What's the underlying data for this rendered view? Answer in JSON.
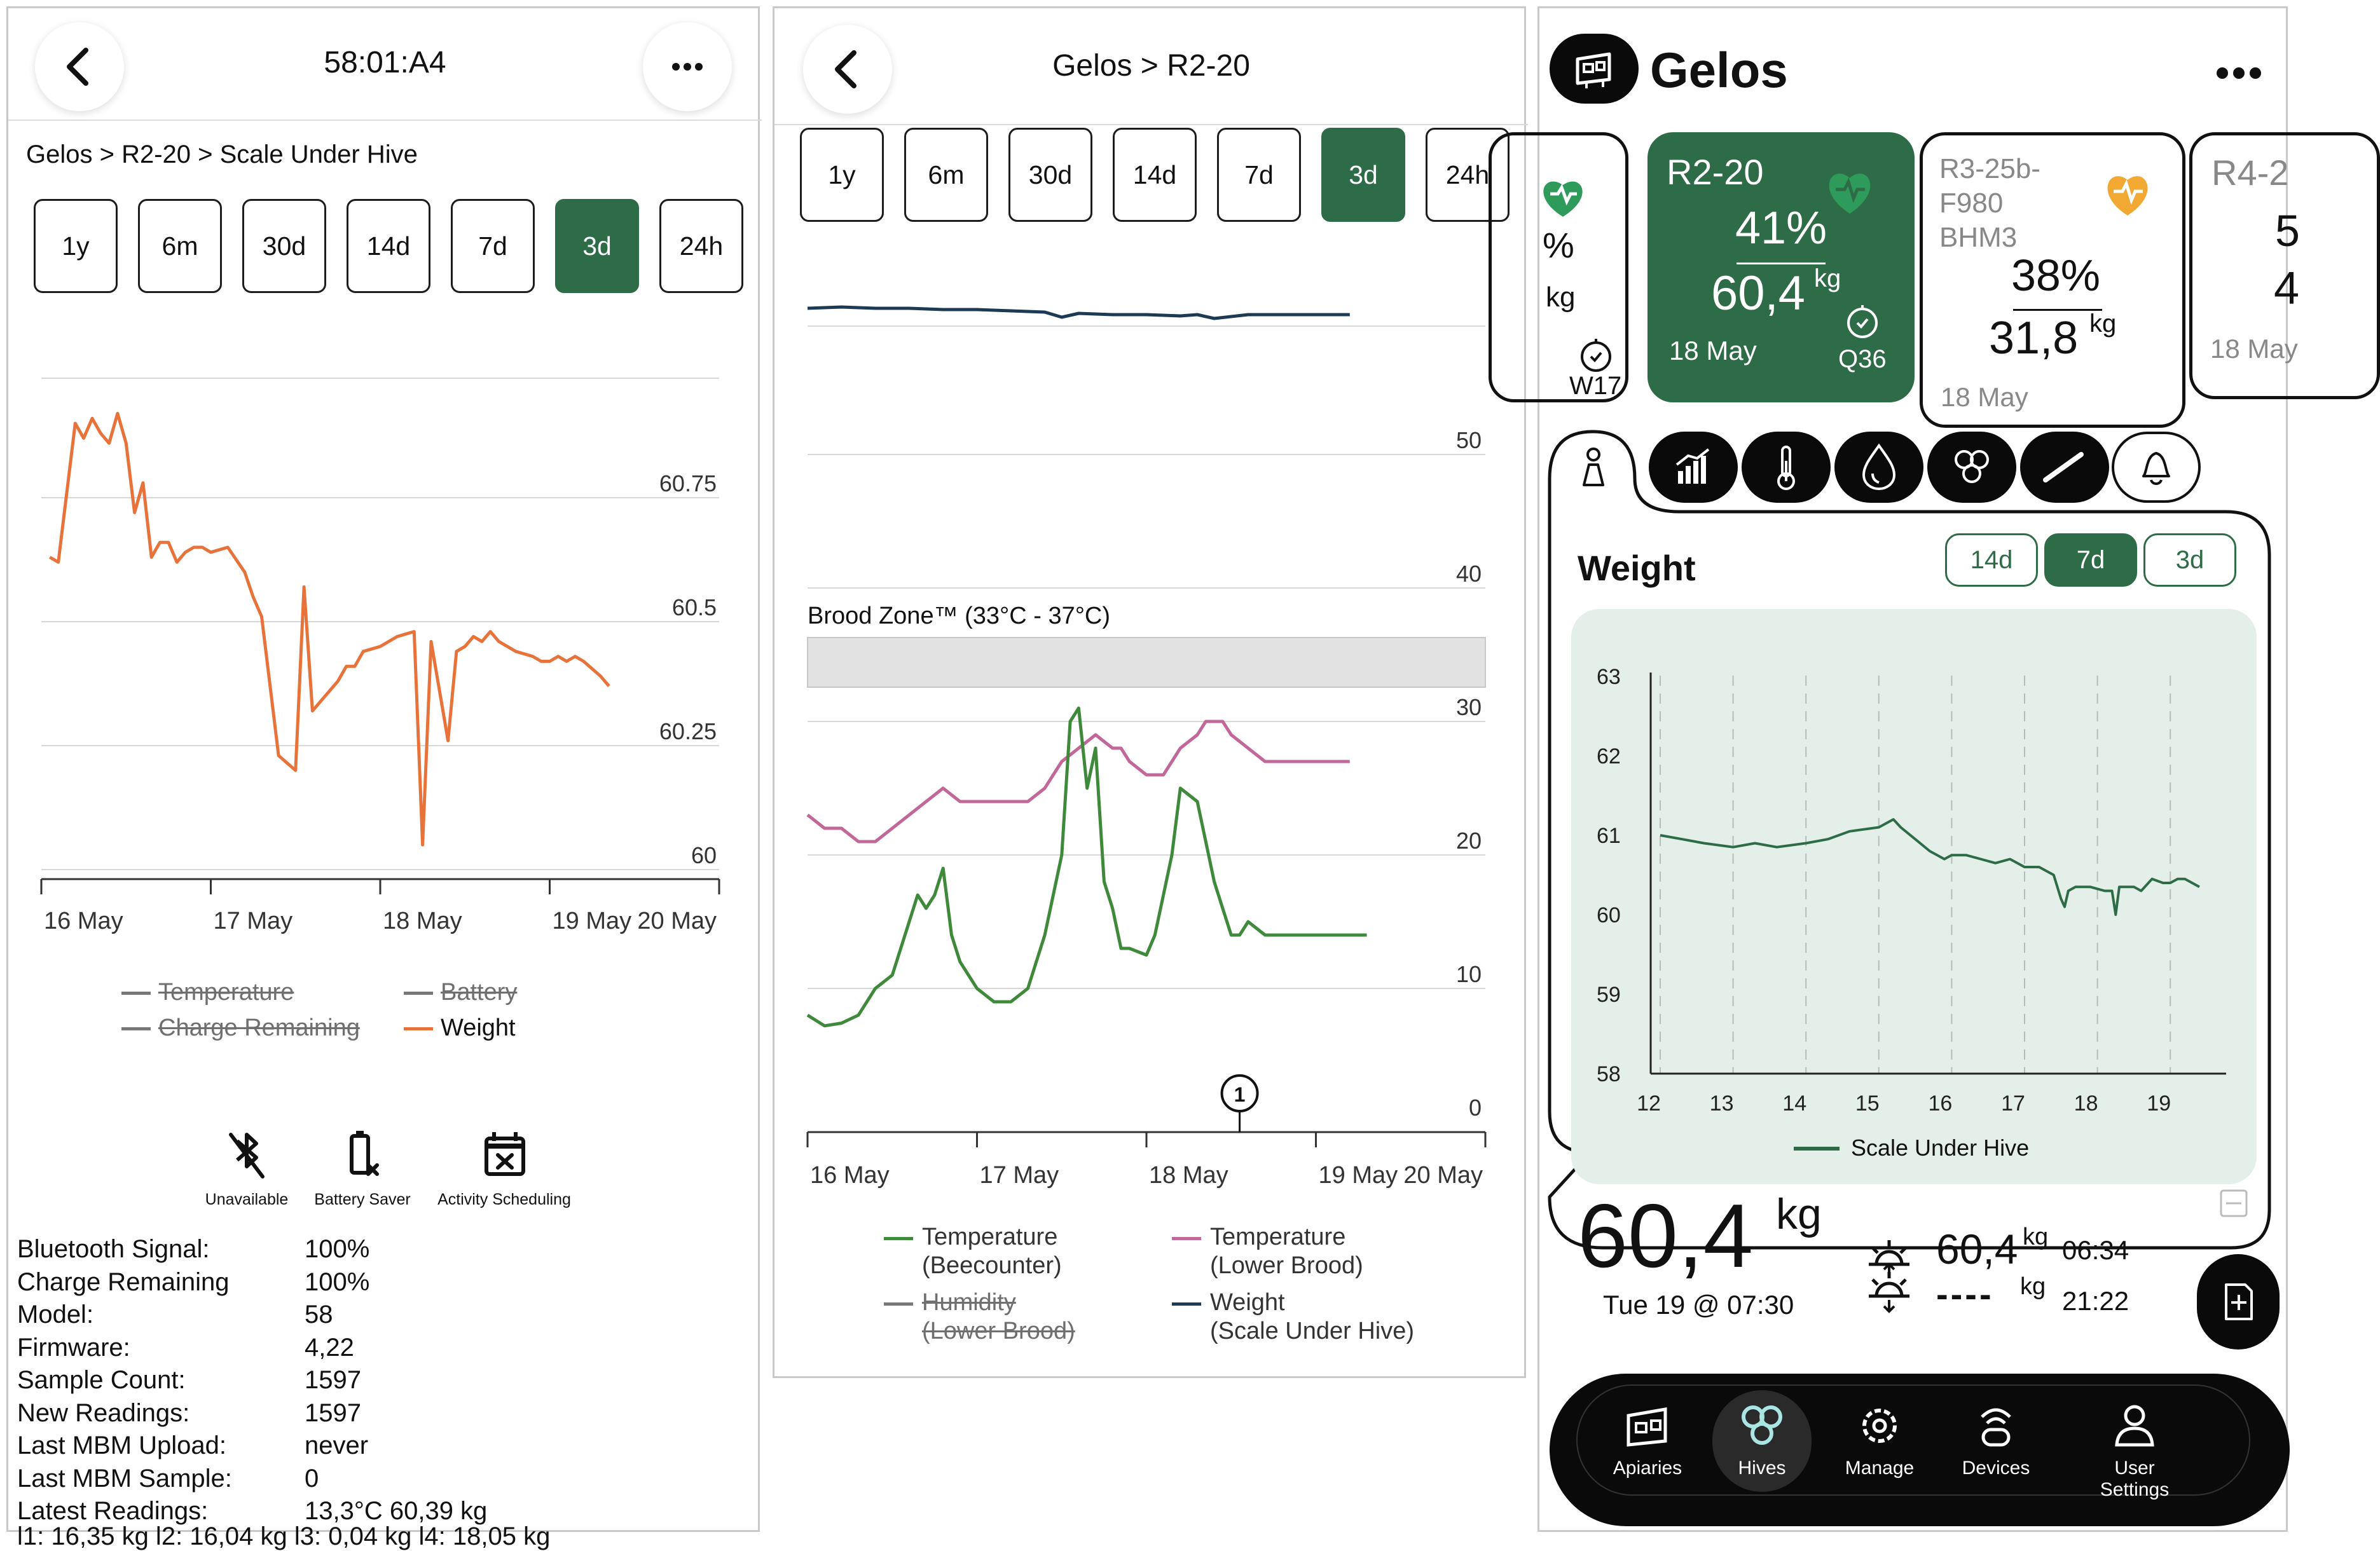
{
  "panel1": {
    "title": "58:01:A4",
    "breadcrumb": "Gelos > R2-20 > Scale Under Hive",
    "ranges": [
      "1y",
      "6m",
      "30d",
      "14d",
      "7d",
      "3d",
      "24h"
    ],
    "selected_range": "3d",
    "legend": {
      "temperature": "Temperature",
      "battery": "Battery",
      "charge": "Charge Remaining",
      "weight": "Weight"
    },
    "status_icons": [
      "Unavailable",
      "Battery Saver",
      "Activity Scheduling"
    ],
    "info_keys": [
      "Bluetooth Signal:",
      "Charge Remaining",
      "Model:",
      "Firmware:",
      "Sample Count:",
      "New Readings:",
      "Last MBM Upload:",
      "Last MBM Sample:",
      "Latest Readings:"
    ],
    "info_values": [
      "100%",
      "100%",
      "58",
      "4,22",
      "1597",
      "1597",
      "never",
      "0",
      "13,3°C  60,39 kg"
    ],
    "cut_line": "l1: 16,35 kg l2: 16,04 kg l3: 0,04 kg l4: 18,05 kg",
    "colors": {
      "weight": "#e8733a",
      "disabled": "#777777"
    }
  },
  "panel2": {
    "title": "Gelos > R2-20",
    "ranges": [
      "1y",
      "6m",
      "30d",
      "14d",
      "7d",
      "3d",
      "24h"
    ],
    "selected_range": "3d",
    "brood_zone": "Brood Zone™ (33°C - 37°C)",
    "annotation": "1",
    "legend": {
      "beecounter_a": "Temperature",
      "beecounter_b": "(Beecounter)",
      "lower_a": "Temperature",
      "lower_b": "(Lower Brood)",
      "humidity_a": "Humidity",
      "humidity_b": "(Lower Brood)",
      "weight_a": "Weight",
      "weight_b": "(Scale Under Hive)"
    },
    "colors": {
      "beecounter": "#3f8a3a",
      "lower_brood": "#c2679a",
      "humidity": "#777777",
      "weight": "#1d3a55"
    }
  },
  "panel3": {
    "app_title": "Gelos",
    "hives": [
      {
        "name": "",
        "pct": "%",
        "weight": "",
        "kg": "kg",
        "date": "",
        "badge": "W17",
        "health": "green"
      },
      {
        "name": "R2-20",
        "pct": "41%",
        "weight": "60,4",
        "kg": "kg",
        "date": "18 May",
        "badge": "Q36",
        "health": "green"
      },
      {
        "name": "R3-25b-\nF980\nBHM3",
        "pct": "38%",
        "weight": "31,8",
        "kg": "kg",
        "date": "18 May",
        "badge": "",
        "health": "orange"
      },
      {
        "name": "R4-2",
        "pct": "5",
        "weight": "4",
        "kg": "",
        "date": "18 May",
        "badge": "",
        "health": ""
      }
    ],
    "section_title": "Weight",
    "ranges": [
      "14d",
      "7d",
      "3d"
    ],
    "selected_range": "7d",
    "legend_label": "Scale Under Hive",
    "big_weight": "60,4",
    "big_unit": "kg",
    "timestamp": "Tue 19 @ 07:30",
    "sunrise_weight": "60,4",
    "sunrise_unit": "kg",
    "sunrise_time": "06:34",
    "sunset_weight": "----",
    "sunset_unit": "kg",
    "sunset_time": "21:22",
    "nav": [
      "Apiaries",
      "Hives",
      "Manage",
      "Devices",
      "User Settings"
    ],
    "selected_nav": "Hives",
    "colors": {
      "accent": "#2e6b47",
      "chart_bg": "#e4efe9",
      "nav_highlight": "#a9e6e3"
    }
  },
  "chart_data": [
    {
      "type": "line",
      "title": "",
      "x_ticks": [
        "16 May",
        "17 May",
        "18 May",
        "19 May",
        "20 May"
      ],
      "y_ticks": [
        "60",
        "60.25",
        "60.5",
        "60.75"
      ],
      "ylim": [
        60,
        60.95
      ],
      "series": [
        {
          "name": "Weight",
          "x": [
            16.05,
            16.1,
            16.2,
            16.25,
            16.3,
            16.35,
            16.4,
            16.45,
            16.5,
            16.55,
            16.6,
            16.65,
            16.7,
            16.75,
            16.8,
            16.85,
            16.9,
            16.95,
            17.0,
            17.1,
            17.2,
            17.25,
            17.3,
            17.4,
            17.5,
            17.55,
            17.6,
            17.65,
            17.7,
            17.75,
            17.8,
            17.85,
            17.9,
            18.0,
            18.1,
            18.2,
            18.25,
            18.3,
            18.4,
            18.45,
            18.5,
            18.55,
            18.6,
            18.65,
            18.7,
            18.75,
            18.8,
            18.9,
            18.95,
            19.0,
            19.05,
            19.1,
            19.15,
            19.2,
            19.3,
            19.35
          ],
          "y": [
            60.63,
            60.62,
            60.9,
            60.87,
            60.91,
            60.88,
            60.86,
            60.92,
            60.86,
            60.72,
            60.78,
            60.63,
            60.66,
            60.66,
            60.62,
            60.64,
            60.65,
            60.65,
            60.64,
            60.65,
            60.6,
            60.55,
            60.51,
            60.23,
            60.2,
            60.57,
            60.32,
            60.34,
            60.36,
            60.38,
            60.41,
            60.41,
            60.44,
            60.45,
            60.47,
            60.48,
            60.05,
            60.46,
            60.26,
            60.44,
            60.45,
            60.47,
            60.46,
            60.48,
            60.46,
            60.45,
            60.44,
            60.43,
            60.42,
            60.42,
            60.43,
            60.42,
            60.43,
            60.42,
            60.39,
            60.37
          ]
        }
      ],
      "legend": [
        "Temperature",
        "Battery",
        "Charge Remaining",
        "Weight"
      ]
    },
    {
      "type": "line",
      "title": "",
      "x_ticks": [
        "16 May",
        "17 May",
        "18 May",
        "19 May",
        "20 May"
      ],
      "y_ticks": [
        "0",
        "10",
        "20",
        "30",
        "40",
        "50"
      ],
      "ylim": [
        0,
        62
      ],
      "series": [
        {
          "name": "Temperature (Beecounter)",
          "x": [
            16.0,
            16.1,
            16.2,
            16.3,
            16.4,
            16.5,
            16.55,
            16.6,
            16.65,
            16.7,
            16.75,
            16.8,
            16.85,
            16.9,
            17.0,
            17.1,
            17.2,
            17.3,
            17.4,
            17.5,
            17.55,
            17.6,
            17.65,
            17.7,
            17.75,
            17.8,
            17.85,
            17.9,
            18.0,
            18.05,
            18.1,
            18.15,
            18.2,
            18.3,
            18.4,
            18.45,
            18.5,
            18.55,
            18.6,
            18.7,
            18.8,
            18.9,
            19.0,
            19.1,
            19.2,
            19.3
          ],
          "y": [
            8,
            7.2,
            7.4,
            8,
            10,
            11,
            13,
            15,
            17,
            16,
            17,
            19,
            14,
            12,
            10,
            9,
            9,
            10,
            14,
            20,
            30,
            31,
            25,
            28,
            18,
            16,
            13,
            13,
            12.5,
            14,
            17,
            20,
            25,
            24,
            18,
            16,
            14,
            14,
            15,
            14,
            14,
            14,
            14,
            14,
            14,
            14
          ]
        },
        {
          "name": "Temperature (Lower Brood)",
          "x": [
            16.0,
            16.1,
            16.2,
            16.3,
            16.4,
            16.5,
            16.6,
            16.7,
            16.8,
            16.9,
            17.0,
            17.1,
            17.2,
            17.3,
            17.4,
            17.45,
            17.5,
            17.6,
            17.7,
            17.8,
            17.85,
            17.9,
            18.0,
            18.1,
            18.15,
            18.2,
            18.3,
            18.35,
            18.4,
            18.45,
            18.5,
            18.6,
            18.7,
            18.8,
            18.9,
            19.0,
            19.1,
            19.2
          ],
          "y": [
            23,
            22,
            22,
            21,
            21,
            22,
            23,
            24,
            25,
            24,
            24,
            24,
            24,
            24,
            25,
            26,
            27,
            28,
            29,
            28,
            28,
            27,
            26,
            26,
            27,
            28,
            29,
            30,
            30,
            30,
            29,
            28,
            27,
            27,
            27,
            27,
            27,
            27
          ]
        },
        {
          "name": "Weight (Scale Under Hive)",
          "x": [
            16.0,
            16.2,
            16.4,
            16.6,
            16.8,
            17.0,
            17.2,
            17.4,
            17.5,
            17.6,
            17.8,
            18.0,
            18.2,
            18.3,
            18.4,
            18.6,
            18.8,
            19.0,
            19.2
          ],
          "y": [
            60.5,
            60.6,
            60.5,
            60.5,
            60.4,
            60.4,
            60.3,
            60.2,
            59.8,
            60.1,
            60.0,
            60.0,
            59.9,
            60.0,
            59.7,
            60.0,
            60.0,
            60.0,
            60.0
          ]
        }
      ],
      "annotations": [
        {
          "x": 18.55,
          "label": "1"
        }
      ],
      "brood_zone": [
        33,
        37
      ]
    },
    {
      "type": "line",
      "title": "Weight",
      "x_ticks": [
        "12",
        "13",
        "14",
        "15",
        "16",
        "17",
        "18",
        "19"
      ],
      "y_ticks": [
        "58",
        "59",
        "60",
        "61",
        "62",
        "63"
      ],
      "ylim": [
        58,
        63
      ],
      "series": [
        {
          "name": "Scale Under Hive",
          "x": [
            12.0,
            12.3,
            12.6,
            13.0,
            13.3,
            13.6,
            14.0,
            14.3,
            14.6,
            15.0,
            15.1,
            15.2,
            15.3,
            15.5,
            15.7,
            15.9,
            16.0,
            16.2,
            16.4,
            16.6,
            16.8,
            17.0,
            17.2,
            17.4,
            17.5,
            17.55,
            17.6,
            17.7,
            17.9,
            18.1,
            18.2,
            18.25,
            18.3,
            18.4,
            18.5,
            18.6,
            18.75,
            18.9,
            19.0,
            19.1,
            19.2,
            19.3,
            19.4
          ],
          "y": [
            61.0,
            60.95,
            60.9,
            60.85,
            60.9,
            60.85,
            60.9,
            60.95,
            61.05,
            61.1,
            61.15,
            61.2,
            61.1,
            60.95,
            60.8,
            60.7,
            60.75,
            60.75,
            60.7,
            60.65,
            60.7,
            60.6,
            60.6,
            60.5,
            60.2,
            60.1,
            60.3,
            60.35,
            60.35,
            60.3,
            60.3,
            60.0,
            60.35,
            60.35,
            60.35,
            60.3,
            60.45,
            60.4,
            60.4,
            60.45,
            60.45,
            60.4,
            60.35
          ]
        }
      ]
    }
  ]
}
